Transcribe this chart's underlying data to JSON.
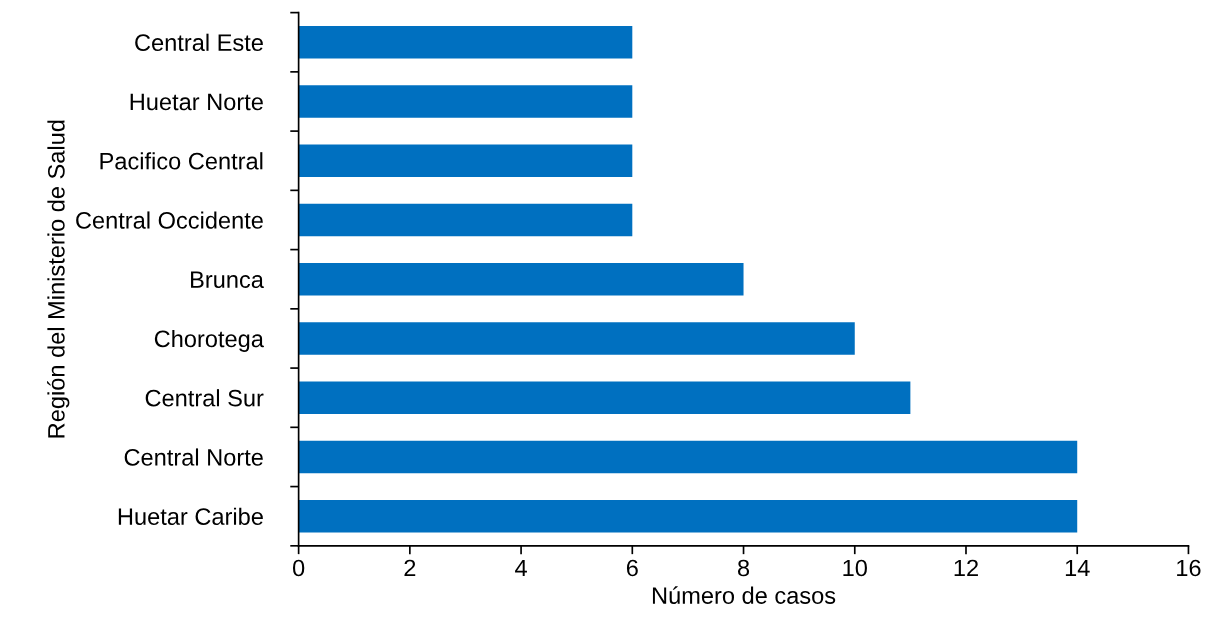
{
  "chart_data": {
    "type": "bar",
    "orientation": "horizontal",
    "xlabel": "Número de casos",
    "ylabel": "Región del Ministerio de Salud",
    "categories": [
      "Central Este",
      "Huetar Norte",
      "Pacifico Central",
      "Central Occidente",
      "Brunca",
      "Chorotega",
      "Central Sur",
      "Central Norte",
      "Huetar Caribe"
    ],
    "values": [
      6,
      6,
      6,
      6,
      8,
      10,
      11,
      14,
      14
    ],
    "color": "#0070c0",
    "xlim": [
      0,
      16
    ],
    "xticks": [
      0,
      2,
      4,
      6,
      8,
      10,
      12,
      14,
      16
    ],
    "grid": false,
    "legend": false
  }
}
